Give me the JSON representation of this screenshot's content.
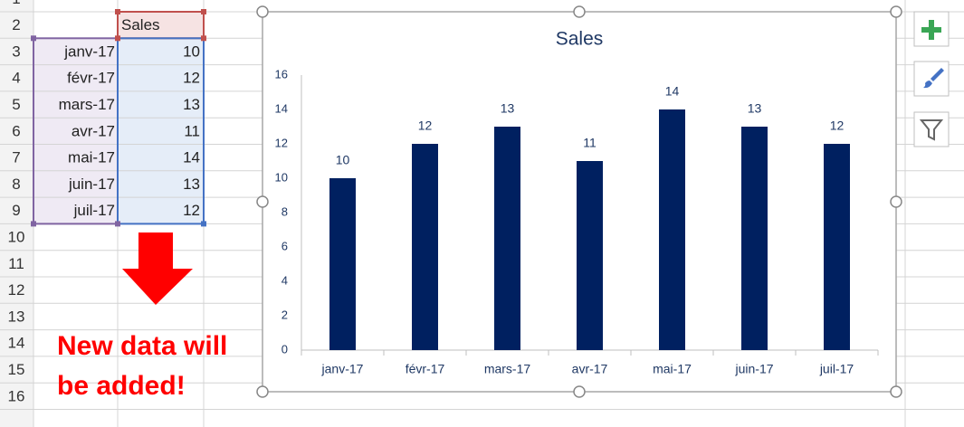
{
  "sheet": {
    "row_numbers": [
      1,
      2,
      3,
      4,
      5,
      6,
      7,
      8,
      9,
      10,
      11,
      12,
      13,
      14,
      15,
      16
    ],
    "header": "Sales",
    "rows": [
      [
        "janv-17",
        10
      ],
      [
        "févr-17",
        12
      ],
      [
        "mars-17",
        13
      ],
      [
        "avr-17",
        11
      ],
      [
        "mai-17",
        14
      ],
      [
        "juin-17",
        13
      ],
      [
        "juil-17",
        12
      ]
    ]
  },
  "annotation": [
    "New data will",
    "be added!"
  ],
  "chart_data": {
    "type": "bar",
    "title": "Sales",
    "categories": [
      "janv-17",
      "févr-17",
      "mars-17",
      "avr-17",
      "mai-17",
      "juin-17",
      "juil-17"
    ],
    "values": [
      10,
      12,
      13,
      11,
      14,
      13,
      12
    ],
    "color": "#002060",
    "ylim": [
      0,
      16
    ],
    "yticks": [
      0,
      2,
      4,
      6,
      8,
      10,
      12,
      14,
      16
    ],
    "grid": false,
    "data_labels": true
  }
}
